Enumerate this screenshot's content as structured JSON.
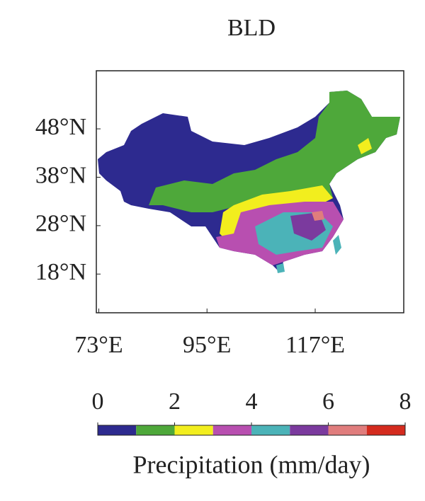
{
  "map": {
    "title": "BLD",
    "xlim": [
      72.5,
      135
    ],
    "ylim": [
      10,
      60
    ],
    "xticks": [
      {
        "value": 73,
        "label": "73°E"
      },
      {
        "value": 95,
        "label": "95°E"
      },
      {
        "value": 117,
        "label": "117°E"
      }
    ],
    "yticks": [
      {
        "value": 48,
        "label": "48°N"
      },
      {
        "value": 38,
        "label": "38°N"
      },
      {
        "value": 28,
        "label": "28°N"
      },
      {
        "value": 18,
        "label": "18°N"
      }
    ],
    "colorbar": {
      "label": "Precipitation (mm/day)",
      "lim": [
        0,
        8
      ],
      "ticks": [
        0,
        2,
        4,
        6,
        8
      ],
      "colors": [
        "#2d2a8f",
        "#4ea83a",
        "#f2ee1e",
        "#b84fb0",
        "#4bb3b8",
        "#7b3a9e",
        "#e07d7d",
        "#d42b1e"
      ]
    }
  }
}
